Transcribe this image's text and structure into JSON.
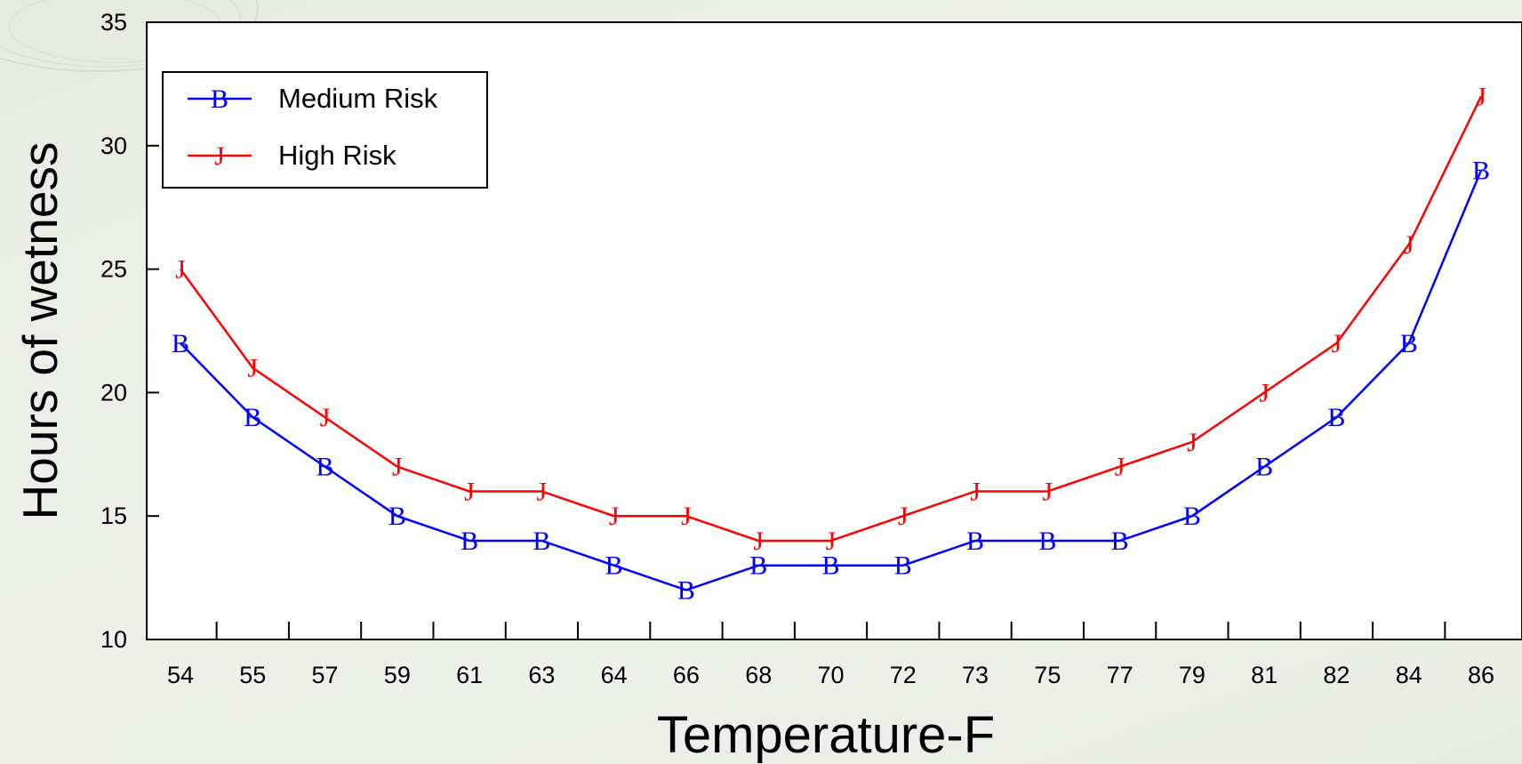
{
  "chart_data": {
    "type": "line",
    "title": "",
    "xlabel": "Temperature-F",
    "ylabel": "Hours of wetness",
    "categories": [
      "54",
      "55",
      "57",
      "59",
      "61",
      "63",
      "64",
      "66",
      "68",
      "70",
      "72",
      "73",
      "75",
      "77",
      "79",
      "81",
      "82",
      "84",
      "86"
    ],
    "ylim": [
      10,
      35
    ],
    "yticks": [
      "10",
      "15",
      "20",
      "25",
      "30",
      "35"
    ],
    "grid": false,
    "legend_position": "top-left",
    "series": [
      {
        "name": "Medium Risk",
        "marker": "B",
        "color": "#0000ff",
        "values": [
          22,
          19,
          17,
          15,
          14,
          14,
          13,
          12,
          13,
          13,
          13,
          14,
          14,
          14,
          15,
          17,
          19,
          22,
          29
        ]
      },
      {
        "name": "High Risk",
        "marker": "J",
        "color": "#ff0000",
        "values": [
          25,
          21,
          19,
          17,
          16,
          16,
          15,
          15,
          14,
          14,
          15,
          16,
          16,
          17,
          18,
          20,
          22,
          26,
          32
        ]
      }
    ]
  }
}
